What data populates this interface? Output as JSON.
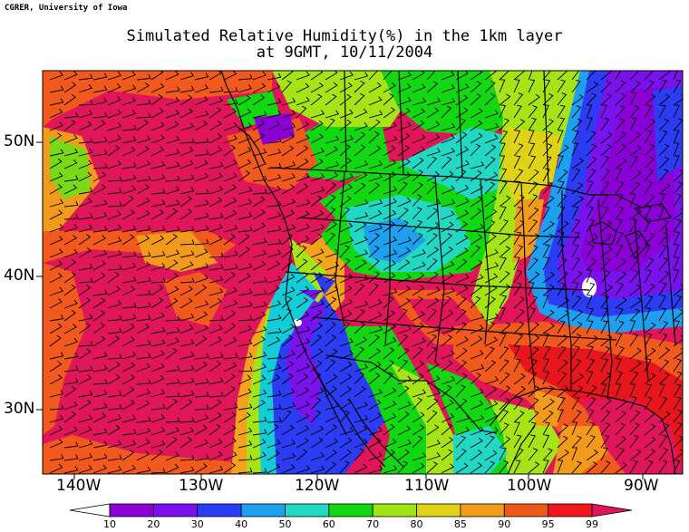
{
  "header": {
    "credit": "CGRER, University of Iowa",
    "title_line1": "Simulated Relative Humidity(%) in the 1km layer",
    "title_line2": "at 9GMT, 10/11/2004"
  },
  "axes": {
    "lat_labels": [
      "50N",
      "40N",
      "30N"
    ],
    "lon_labels": [
      "140W",
      "130W",
      "120W",
      "110W",
      "100W",
      "90W"
    ]
  },
  "colorbar": {
    "levels": [
      "10",
      "20",
      "30",
      "40",
      "50",
      "60",
      "70",
      "80",
      "85",
      "90",
      "95",
      "99"
    ],
    "colors": [
      "#ffffff",
      "#8a00d6",
      "#7a10f0",
      "#2a3cf5",
      "#1ea0f0",
      "#22d7c4",
      "#11d811",
      "#9fe614",
      "#e0d317",
      "#f19e1b",
      "#ed5a18",
      "#f2161c",
      "#e0145a"
    ]
  },
  "map": {
    "background_color": "#e01a5a",
    "wind_barbs": true,
    "boundaries": [
      "coastlines",
      "us-states",
      "canadian-provinces",
      "mexico-border"
    ]
  }
}
